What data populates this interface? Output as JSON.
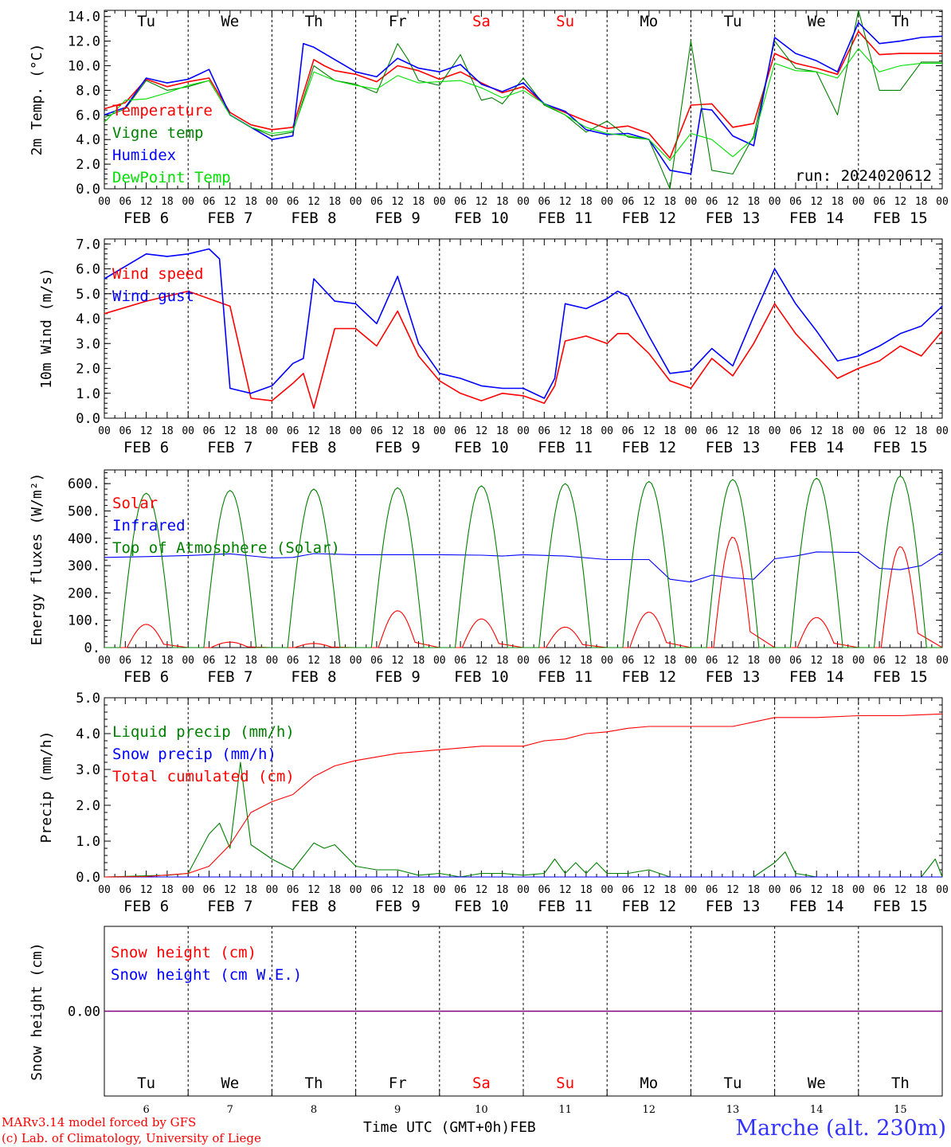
{
  "days": [
    "Tu",
    "We",
    "Th",
    "Fr",
    "Sa",
    "Su",
    "Mo",
    "Tu",
    "We",
    "Th"
  ],
  "weekend_day_indices": [
    4,
    5
  ],
  "hour_ticks": [
    "00",
    "06",
    "12",
    "18"
  ],
  "end_hour": "00",
  "dates": [
    "FEB  6",
    "FEB  7",
    "FEB  8",
    "FEB  9",
    "FEB 10",
    "FEB 11",
    "FEB 12",
    "FEB 13",
    "FEB 14",
    "FEB 15"
  ],
  "bottom_day_numbers": [
    "6",
    "7",
    "8",
    "9",
    "10",
    "11",
    "12",
    "13",
    "14",
    "15"
  ],
  "run_label": "run: 2024020612",
  "footer": {
    "model": "MARv3.14 model forced by GFS",
    "lab": "(c) Lab. of Climatology, University of Liege",
    "axis_title": "Time UTC (GMT+0h)",
    "month": "FEB",
    "station": "Marche (alt. 230m)"
  },
  "colors": {
    "red": "#ff0000",
    "green": "#008000",
    "blue": "#0000ff",
    "lime": "#00e000",
    "purple": "#800080",
    "station": "#3333ff"
  },
  "chart_data": [
    {
      "type": "line",
      "ylabel": "2m Temp. (°C)",
      "ylim": [
        0,
        14.5
      ],
      "yticks": [
        "0.0",
        "2.0",
        "4.0",
        "6.0",
        "8.0",
        "10.0",
        "12.0",
        "14.0"
      ],
      "ytick_values": [
        0,
        2,
        4,
        6,
        8,
        10,
        12,
        14
      ],
      "x_unit": "hours since FEB 6 00 UTC",
      "series": [
        {
          "name": "Temperature",
          "color": "#ff0000",
          "x": [
            0,
            6,
            12,
            15,
            18,
            24,
            30,
            36,
            42,
            48,
            54,
            60,
            63,
            66,
            72,
            78,
            84,
            90,
            96,
            102,
            108,
            114,
            120,
            126,
            132,
            138,
            144,
            150,
            156,
            162,
            168,
            174,
            180,
            186,
            192,
            198,
            204,
            210,
            216,
            222,
            228,
            234,
            240
          ],
          "y": [
            6.5,
            7.0,
            8.9,
            8.6,
            8.3,
            8.7,
            9.0,
            6.2,
            5.2,
            4.8,
            5.0,
            10.5,
            10.0,
            9.6,
            9.3,
            8.7,
            10.0,
            9.6,
            8.9,
            9.5,
            8.6,
            7.8,
            8.3,
            6.9,
            6.2,
            5.5,
            4.9,
            5.1,
            4.5,
            2.5,
            6.8,
            6.9,
            5.0,
            5.3,
            11.0,
            10.2,
            9.8,
            9.3,
            12.8,
            10.9,
            11.0,
            11.0,
            11.0
          ]
        },
        {
          "name": "Vigne temp",
          "color": "#008000",
          "x": [
            0,
            6,
            12,
            18,
            24,
            30,
            36,
            42,
            48,
            54,
            60,
            66,
            72,
            78,
            84,
            87,
            90,
            96,
            102,
            108,
            111,
            114,
            120,
            126,
            132,
            138,
            144,
            150,
            156,
            162,
            168,
            174,
            180,
            186,
            192,
            198,
            204,
            210,
            216,
            222,
            228,
            234,
            240
          ],
          "y": [
            5.8,
            6.5,
            8.8,
            8.0,
            8.3,
            8.8,
            6.0,
            5.0,
            4.3,
            4.6,
            10.0,
            8.8,
            8.5,
            7.8,
            11.8,
            10.5,
            8.8,
            8.4,
            10.9,
            7.2,
            7.4,
            6.9,
            9.0,
            6.8,
            6.0,
            4.6,
            5.5,
            4.2,
            4.0,
            -0.5,
            12.0,
            1.5,
            1.2,
            4.3,
            12.0,
            9.8,
            9.5,
            6.0,
            15.0,
            8.0,
            8.0,
            10.3,
            10.3
          ]
        },
        {
          "name": "Humidex",
          "color": "#0000ff",
          "x": [
            0,
            6,
            12,
            18,
            24,
            30,
            36,
            42,
            48,
            54,
            57,
            60,
            66,
            72,
            78,
            84,
            90,
            96,
            102,
            108,
            114,
            120,
            126,
            132,
            138,
            144,
            150,
            156,
            162,
            168,
            171,
            174,
            180,
            186,
            192,
            198,
            204,
            210,
            216,
            222,
            228,
            234,
            240
          ],
          "y": [
            6.0,
            6.6,
            9.0,
            8.6,
            8.9,
            9.7,
            6.0,
            5.0,
            4.0,
            4.3,
            11.8,
            11.5,
            10.5,
            9.5,
            9.1,
            10.6,
            9.8,
            9.5,
            10.1,
            8.5,
            7.9,
            8.6,
            6.9,
            6.3,
            4.8,
            4.4,
            4.5,
            4.0,
            1.5,
            1.2,
            6.5,
            6.4,
            4.3,
            3.5,
            12.3,
            11.0,
            10.4,
            9.5,
            13.5,
            11.8,
            12.0,
            12.3,
            12.4
          ]
        },
        {
          "name": "DewPoint Temp",
          "color": "#00e000",
          "x": [
            0,
            6,
            12,
            18,
            24,
            30,
            36,
            42,
            48,
            54,
            60,
            66,
            72,
            78,
            84,
            90,
            96,
            102,
            108,
            114,
            120,
            126,
            132,
            138,
            144,
            150,
            156,
            162,
            168,
            174,
            180,
            186,
            192,
            198,
            204,
            210,
            216,
            222,
            228,
            234,
            240
          ],
          "y": [
            5.4,
            7.2,
            7.3,
            7.8,
            8.4,
            8.8,
            6.0,
            5.0,
            4.5,
            4.7,
            9.5,
            8.8,
            8.4,
            8.1,
            9.2,
            8.6,
            8.7,
            8.8,
            8.2,
            7.4,
            8.0,
            6.9,
            6.0,
            5.0,
            4.5,
            4.3,
            4.0,
            2.3,
            4.5,
            4.0,
            2.6,
            4.1,
            10.2,
            9.6,
            9.5,
            9.0,
            11.4,
            9.5,
            10.0,
            10.2,
            10.2
          ]
        }
      ]
    },
    {
      "type": "line",
      "ylabel": "10m Wind (m/s)",
      "ylim": [
        0,
        7.2
      ],
      "yticks": [
        "0.0",
        "1.0",
        "2.0",
        "3.0",
        "4.0",
        "5.0",
        "6.0",
        "7.0"
      ],
      "ytick_values": [
        0,
        1,
        2,
        3,
        4,
        5,
        6,
        7
      ],
      "reference_line": 5.0,
      "x_unit": "hours since FEB 6 00 UTC",
      "series": [
        {
          "name": "Wind speed",
          "color": "#ff0000",
          "x": [
            0,
            12,
            24,
            36,
            42,
            48,
            54,
            57,
            60,
            66,
            72,
            78,
            84,
            90,
            96,
            102,
            108,
            114,
            120,
            126,
            129,
            132,
            138,
            144,
            147,
            150,
            156,
            162,
            168,
            174,
            180,
            186,
            192,
            198,
            204,
            210,
            216,
            222,
            228,
            234,
            240
          ],
          "y": [
            4.2,
            4.7,
            5.1,
            4.5,
            0.8,
            0.7,
            1.4,
            1.8,
            0.4,
            3.6,
            3.6,
            2.9,
            4.3,
            2.5,
            1.5,
            1.0,
            0.7,
            1.0,
            0.9,
            0.6,
            1.3,
            3.1,
            3.3,
            3.0,
            3.4,
            3.4,
            2.6,
            1.5,
            1.2,
            2.4,
            1.7,
            3.0,
            4.6,
            3.4,
            2.5,
            1.6,
            2.0,
            2.3,
            2.9,
            2.5,
            3.5
          ]
        },
        {
          "name": "Wind gust",
          "color": "#0000ff",
          "x": [
            0,
            12,
            18,
            24,
            30,
            33,
            36,
            42,
            48,
            54,
            57,
            60,
            66,
            72,
            78,
            84,
            90,
            96,
            102,
            108,
            114,
            120,
            126,
            129,
            132,
            138,
            144,
            147,
            150,
            156,
            162,
            168,
            174,
            180,
            186,
            192,
            198,
            204,
            210,
            216,
            222,
            228,
            234,
            240
          ],
          "y": [
            5.6,
            6.6,
            6.5,
            6.6,
            6.8,
            6.4,
            1.2,
            1.0,
            1.3,
            2.2,
            2.4,
            5.6,
            4.7,
            4.6,
            3.8,
            5.7,
            3.0,
            1.8,
            1.6,
            1.3,
            1.2,
            1.2,
            0.8,
            1.6,
            4.6,
            4.4,
            4.8,
            5.1,
            4.9,
            3.3,
            1.8,
            1.9,
            2.8,
            2.1,
            4.1,
            6.0,
            4.6,
            3.5,
            2.3,
            2.5,
            2.9,
            3.4,
            3.7,
            4.5
          ]
        }
      ]
    },
    {
      "type": "line",
      "ylabel": "Energy fluxes (W/m²)",
      "ylim": [
        0,
        650
      ],
      "yticks": [
        "0.",
        "100.",
        "200.",
        "300.",
        "400.",
        "500.",
        "600."
      ],
      "ytick_values": [
        0,
        100,
        200,
        300,
        400,
        500,
        600
      ],
      "x_unit": "hours since FEB 6 00 UTC",
      "series": [
        {
          "name": "Solar",
          "color": "#ff0000",
          "daily_peaks": [
            85,
            20,
            15,
            135,
            105,
            75,
            130,
            405,
            110,
            370
          ]
        },
        {
          "name": "Infrared",
          "color": "#0000ff",
          "x": [
            0,
            12,
            24,
            36,
            48,
            54,
            60,
            72,
            84,
            96,
            108,
            114,
            120,
            132,
            144,
            156,
            162,
            168,
            174,
            180,
            186,
            192,
            198,
            204,
            216,
            222,
            228,
            234,
            240
          ],
          "y": [
            330,
            333,
            337,
            343,
            328,
            330,
            344,
            340,
            340,
            340,
            338,
            335,
            340,
            335,
            322,
            322,
            250,
            240,
            265,
            255,
            250,
            325,
            335,
            350,
            348,
            290,
            285,
            300,
            350
          ]
        },
        {
          "name": "Top of Atmosphere (Solar)",
          "color": "#008000",
          "daily_peaks": [
            565,
            575,
            580,
            585,
            592,
            600,
            608,
            615,
            620,
            628
          ]
        }
      ]
    },
    {
      "type": "line",
      "ylabel": "Precip (mm/h)",
      "ylim": [
        0,
        5.0
      ],
      "yticks": [
        "0.0",
        "1.0",
        "2.0",
        "3.0",
        "4.0",
        "5.0"
      ],
      "ytick_values": [
        0,
        1,
        2,
        3,
        4,
        5
      ],
      "x_unit": "hours since FEB 6 00 UTC",
      "series": [
        {
          "name": "Liquid precip (mm/h)",
          "color": "#008000",
          "x": [
            0,
            18,
            24,
            30,
            33,
            36,
            39,
            42,
            45,
            48,
            54,
            60,
            63,
            66,
            72,
            78,
            84,
            90,
            96,
            102,
            108,
            114,
            120,
            126,
            129,
            132,
            135,
            138,
            141,
            144,
            150,
            156,
            162,
            168,
            174,
            180,
            186,
            192,
            195,
            198,
            204,
            210,
            216,
            222,
            228,
            234,
            238,
            240
          ],
          "y": [
            0,
            0.05,
            0.1,
            1.2,
            1.5,
            0.8,
            3.2,
            0.9,
            0.7,
            0.5,
            0.2,
            0.95,
            0.8,
            0.9,
            0.3,
            0.2,
            0.2,
            0.05,
            0.1,
            0,
            0.1,
            0.1,
            0.05,
            0.1,
            0.5,
            0.1,
            0.4,
            0.1,
            0.4,
            0.1,
            0.1,
            0.2,
            0,
            0,
            0,
            0,
            0,
            0.4,
            0.7,
            0.1,
            0,
            0,
            0,
            0,
            0,
            0,
            0.5,
            0
          ]
        },
        {
          "name": "Snow precip (mm/h)",
          "color": "#0000ff",
          "x": [
            0,
            240
          ],
          "y": [
            0,
            0
          ]
        },
        {
          "name": "Total cumulated (cm)",
          "color": "#ff0000",
          "x": [
            0,
            12,
            24,
            30,
            36,
            42,
            48,
            54,
            60,
            66,
            72,
            78,
            84,
            96,
            108,
            120,
            126,
            132,
            138,
            144,
            150,
            156,
            168,
            180,
            192,
            204,
            216,
            228,
            240
          ],
          "y": [
            0,
            0.01,
            0.1,
            0.3,
            0.9,
            1.8,
            2.1,
            2.3,
            2.8,
            3.1,
            3.25,
            3.35,
            3.45,
            3.55,
            3.65,
            3.65,
            3.8,
            3.85,
            4.0,
            4.05,
            4.15,
            4.2,
            4.2,
            4.2,
            4.45,
            4.45,
            4.5,
            4.5,
            4.55
          ]
        }
      ]
    },
    {
      "type": "line",
      "ylabel": "Snow height (cm)",
      "yticks": [
        "0.00"
      ],
      "ytick_values": [
        0
      ],
      "x_unit": "hours since FEB 6 00 UTC",
      "series": [
        {
          "name": "Snow height (cm)",
          "color": "#ff0000",
          "x": [
            0,
            240
          ],
          "y": [
            0,
            0
          ]
        },
        {
          "name": "Snow height (cm W.E.)",
          "color": "#0000ff",
          "x": [
            0,
            240
          ],
          "y": [
            0,
            0
          ]
        }
      ]
    }
  ]
}
